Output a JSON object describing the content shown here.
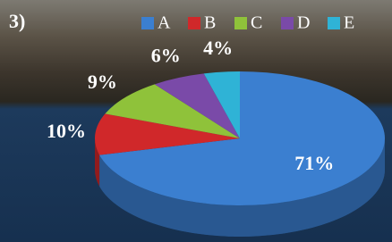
{
  "chart_data": {
    "type": "pie",
    "title": "3)",
    "categories": [
      "A",
      "B",
      "C",
      "D",
      "E"
    ],
    "values": [
      71,
      10,
      9,
      6,
      4
    ],
    "value_labels": [
      "71%",
      "10%",
      "9%",
      "6%",
      "4%"
    ],
    "colors": [
      "#3b7fd0",
      "#d0282a",
      "#8fc23a",
      "#7a4aa8",
      "#2fb3d6"
    ],
    "legend": "top"
  }
}
